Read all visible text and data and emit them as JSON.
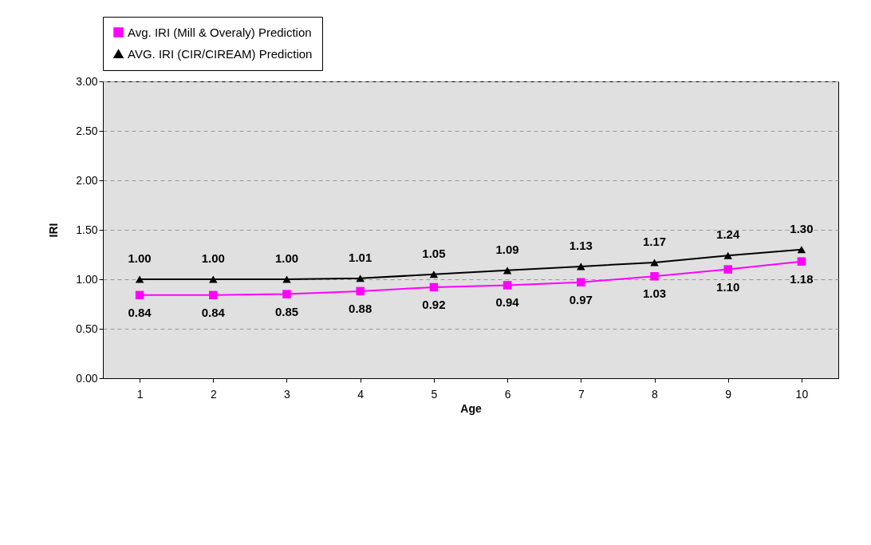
{
  "chart_data": {
    "type": "line",
    "xlabel": "Age",
    "ylabel": "IRI",
    "categories": [
      "1",
      "2",
      "3",
      "4",
      "5",
      "6",
      "7",
      "8",
      "9",
      "10"
    ],
    "series": [
      {
        "name": "Avg. IRI (Mill & Overaly) Prediction",
        "color": "#ff00ff",
        "marker": "square",
        "values": [
          0.84,
          0.84,
          0.85,
          0.88,
          0.92,
          0.94,
          0.97,
          1.03,
          1.1,
          1.18
        ],
        "value_labels": [
          "0.84",
          "0.84",
          "0.85",
          "0.88",
          "0.92",
          "0.94",
          "0.97",
          "1.03",
          "1.10",
          "1.18"
        ]
      },
      {
        "name": "AVG. IRI (CIR/CIREAM) Prediction",
        "color": "#000000",
        "marker": "triangle",
        "values": [
          1.0,
          1.0,
          1.0,
          1.01,
          1.05,
          1.09,
          1.13,
          1.17,
          1.24,
          1.3
        ],
        "value_labels": [
          "1.00",
          "1.00",
          "1.00",
          "1.01",
          "1.05",
          "1.09",
          "1.13",
          "1.17",
          "1.24",
          "1.30"
        ]
      }
    ],
    "ylim": [
      0,
      3
    ],
    "yticks": [
      {
        "value": 0,
        "label": "0.00"
      },
      {
        "value": 0.5,
        "label": "0.50"
      },
      {
        "value": 1,
        "label": "1.00"
      },
      {
        "value": 1.5,
        "label": "1.50"
      },
      {
        "value": 2,
        "label": "2.00"
      },
      {
        "value": 2.5,
        "label": "2.50"
      },
      {
        "value": 3,
        "label": "3.00"
      }
    ],
    "grid": "y",
    "legend": "top",
    "line_style": "solid"
  }
}
